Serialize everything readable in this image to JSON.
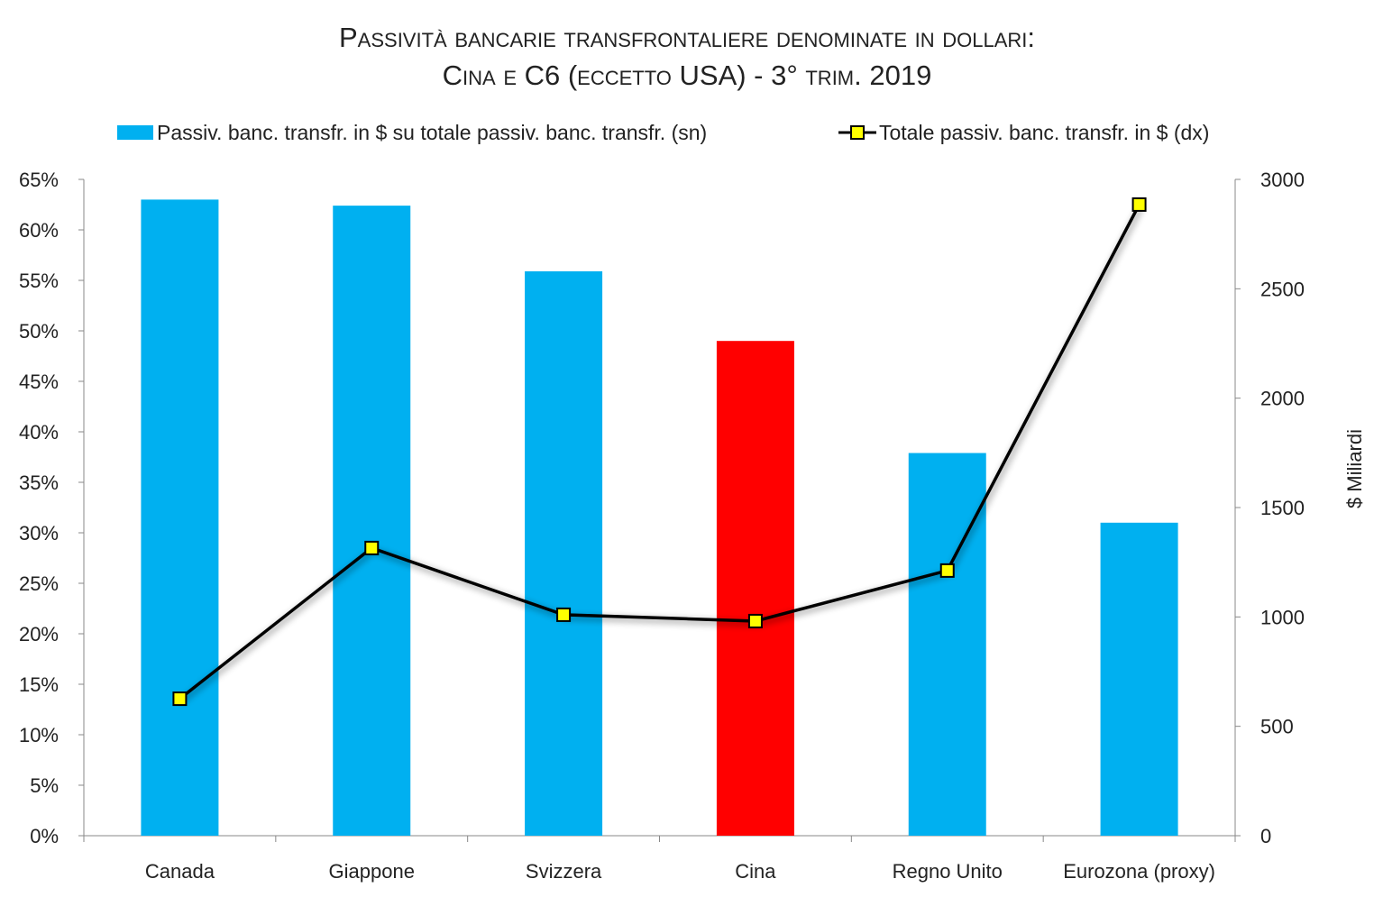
{
  "chart_data": {
    "type": "bar",
    "title_line1": "Passività bancarie transfrontaliere denominate in dollari:",
    "title_line2": "Cina e C6 (eccetto USA) - 3° trim. 2019",
    "categories": [
      "Canada",
      "Giappone",
      "Svizzera",
      "Cina",
      "Regno Unito",
      "Eurozona (proxy)"
    ],
    "series": [
      {
        "name": "Passiv. banc. transfr. in $ su totale passiv. banc. transfr. (sn)",
        "type": "bar",
        "axis": "left",
        "unit": "%",
        "values": [
          63.0,
          62.4,
          55.9,
          49.0,
          37.9,
          31.0
        ],
        "color": "#00B0F0",
        "highlight_color": "#FF0000",
        "highlight_index": 3
      },
      {
        "name": "Totale passiv. banc. transfr. in $ (dx)",
        "type": "line",
        "axis": "right",
        "values": [
          626,
          1315,
          1010,
          981,
          1212,
          2885
        ],
        "color": "#000000",
        "marker_color": "#FFFF00"
      }
    ],
    "y_left": {
      "min": 0,
      "max": 65,
      "step": 5,
      "tick_labels": [
        "0%",
        "5%",
        "10%",
        "15%",
        "20%",
        "25%",
        "30%",
        "35%",
        "40%",
        "45%",
        "50%",
        "55%",
        "60%",
        "65%"
      ]
    },
    "y_right": {
      "min": 0,
      "max": 3000,
      "step": 500,
      "label": "$ Miliardi",
      "tick_labels": [
        "0",
        "500",
        "1000",
        "1500",
        "2000",
        "2500",
        "3000"
      ]
    },
    "legend_position": "top",
    "grid": false
  }
}
